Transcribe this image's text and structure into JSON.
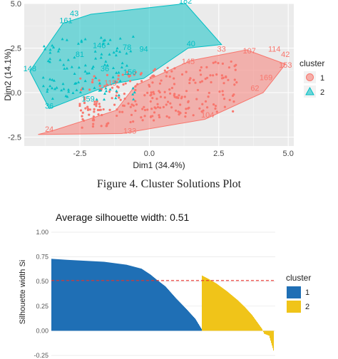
{
  "caption": "Figure 4. Cluster Solutions Plot",
  "colors": {
    "cluster1": "#F8766D",
    "cluster2": "#00BFC4",
    "sil1": "#1F6FB5",
    "sil2": "#F0C419",
    "mean_line": "#E8302A",
    "panel": "#EBEBEB"
  },
  "chart_data": [
    {
      "type": "scatter",
      "xlabel": "Dim1 (34.4%)",
      "ylabel": "Dim2 (14.1%)",
      "xticks": [
        "-2.5",
        "0.0",
        "2.5",
        "5.0"
      ],
      "yticks": [
        "5.0",
        "2.5",
        "0.0",
        "-2.5"
      ],
      "xlim": [
        -4.5,
        5.2
      ],
      "ylim": [
        -3.0,
        5.0
      ],
      "grid": true,
      "legend": {
        "title": "cluster",
        "entries": [
          "1",
          "2"
        ],
        "placement": "right"
      },
      "hulls": [
        {
          "cluster": "1",
          "points": [
            [
              -4.0,
              -2.35
            ],
            [
              -3.6,
              -2.2
            ],
            [
              -1.2,
              -1.0
            ],
            [
              -0.5,
              0.4
            ],
            [
              1.5,
              1.8
            ],
            [
              3.5,
              2.4
            ],
            [
              4.9,
              1.6
            ],
            [
              4.1,
              0.0
            ],
            [
              2.0,
              -1.5
            ],
            [
              -1.0,
              -2.3
            ]
          ]
        },
        {
          "cluster": "2",
          "points": [
            [
              -4.3,
              1.2
            ],
            [
              -3.6,
              -0.9
            ],
            [
              -1.3,
              0.5
            ],
            [
              -0.2,
              0.8
            ],
            [
              1.4,
              2.5
            ],
            [
              2.6,
              2.7
            ],
            [
              1.3,
              5.0
            ],
            [
              -2.1,
              4.4
            ],
            [
              -3.1,
              3.9
            ]
          ]
        }
      ],
      "labels": [
        {
          "text": "182",
          "x": 1.3,
          "y": 5.0,
          "cluster": "2"
        },
        {
          "text": "43",
          "x": -2.7,
          "y": 4.3,
          "cluster": "2"
        },
        {
          "text": "161",
          "x": -3.0,
          "y": 3.9,
          "cluster": "2"
        },
        {
          "text": "40",
          "x": 1.5,
          "y": 2.6,
          "cluster": "2"
        },
        {
          "text": "94",
          "x": -0.2,
          "y": 2.3,
          "cluster": "2"
        },
        {
          "text": "78",
          "x": -0.8,
          "y": 2.4,
          "cluster": "2"
        },
        {
          "text": "146",
          "x": -1.8,
          "y": 2.5,
          "cluster": "2"
        },
        {
          "text": "81",
          "x": -2.5,
          "y": 2.0,
          "cluster": "2"
        },
        {
          "text": "148",
          "x": -4.3,
          "y": 1.2,
          "cluster": "2"
        },
        {
          "text": "156",
          "x": -0.7,
          "y": 1.0,
          "cluster": "2"
        },
        {
          "text": "36",
          "x": -1.6,
          "y": 1.2,
          "cluster": "2"
        },
        {
          "text": "159",
          "x": -2.2,
          "y": -0.5,
          "cluster": "2"
        },
        {
          "text": "36",
          "x": -3.6,
          "y": -0.9,
          "cluster": "2"
        },
        {
          "text": "33",
          "x": 2.6,
          "y": 2.3,
          "cluster": "1"
        },
        {
          "text": "107",
          "x": 3.6,
          "y": 2.2,
          "cluster": "1"
        },
        {
          "text": "114",
          "x": 4.5,
          "y": 2.3,
          "cluster": "1"
        },
        {
          "text": "42",
          "x": 4.9,
          "y": 2.0,
          "cluster": "1"
        },
        {
          "text": "153",
          "x": 4.9,
          "y": 1.4,
          "cluster": "1"
        },
        {
          "text": "145",
          "x": 1.4,
          "y": 1.6,
          "cluster": "1"
        },
        {
          "text": "62",
          "x": 3.8,
          "y": 0.1,
          "cluster": "1"
        },
        {
          "text": "169",
          "x": 4.2,
          "y": 0.7,
          "cluster": "1"
        },
        {
          "text": "104",
          "x": 2.1,
          "y": -1.4,
          "cluster": "1"
        },
        {
          "text": "24",
          "x": -3.6,
          "y": -2.2,
          "cluster": "1"
        },
        {
          "text": "133",
          "x": -0.7,
          "y": -2.3,
          "cluster": "1"
        },
        {
          "text": "115",
          "x": -1.4,
          "y": 0.4,
          "cluster": "1"
        }
      ]
    },
    {
      "type": "bar",
      "title": "Average silhouette width: 0.51",
      "ylabel": "Silhouette width Si",
      "yticks": [
        "1.00",
        "0.75",
        "0.50",
        "0.25",
        "0.00",
        "-0.25"
      ],
      "ylim": [
        -0.25,
        1.0
      ],
      "mean_line": 0.51,
      "legend": {
        "title": "cluster",
        "entries": [
          "1",
          "2"
        ],
        "placement": "right"
      },
      "profiles": [
        {
          "cluster": "1",
          "knots": [
            [
              0,
              0.73
            ],
            [
              0.1,
              0.72
            ],
            [
              0.35,
              0.7
            ],
            [
              0.5,
              0.67
            ],
            [
              0.6,
              0.63
            ],
            [
              0.66,
              0.57
            ],
            [
              0.7,
              0.52
            ],
            [
              0.76,
              0.45
            ],
            [
              0.83,
              0.33
            ],
            [
              0.9,
              0.22
            ],
            [
              0.96,
              0.12
            ],
            [
              1.0,
              0.02
            ]
          ]
        },
        {
          "cluster": "2",
          "knots": [
            [
              0,
              0.56
            ],
            [
              0.08,
              0.53
            ],
            [
              0.2,
              0.48
            ],
            [
              0.35,
              0.4
            ],
            [
              0.5,
              0.31
            ],
            [
              0.6,
              0.24
            ],
            [
              0.7,
              0.16
            ],
            [
              0.78,
              0.08
            ],
            [
              0.84,
              0.02
            ],
            [
              0.87,
              -0.03
            ],
            [
              0.94,
              -0.05
            ],
            [
              1.0,
              -0.2
            ]
          ]
        }
      ]
    }
  ]
}
